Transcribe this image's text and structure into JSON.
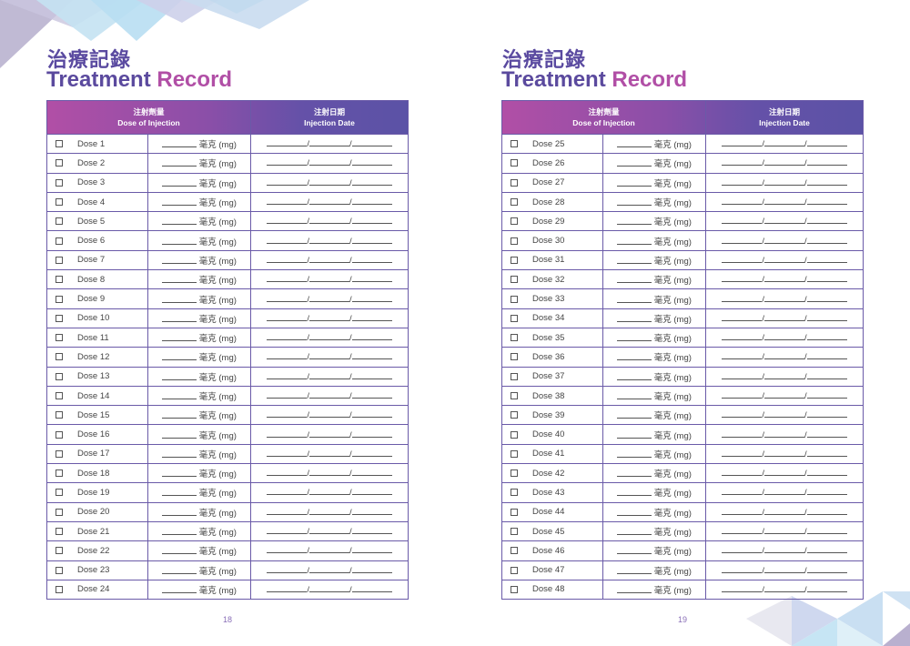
{
  "pages": [
    {
      "title_zh": "治療記錄",
      "title_en_part1": "Treatment ",
      "title_en_part2": "Record",
      "header": {
        "dose_zh": "注射劑量",
        "dose_en": "Dose of Injection",
        "date_zh": "注射日期",
        "date_en": "Injection Date"
      },
      "unit": "毫克 (mg)",
      "doses": [
        "Dose 1",
        "Dose 2",
        "Dose 3",
        "Dose 4",
        "Dose 5",
        "Dose 6",
        "Dose 7",
        "Dose 8",
        "Dose 9",
        "Dose 10",
        "Dose 11",
        "Dose 12",
        "Dose 13",
        "Dose 14",
        "Dose 15",
        "Dose 16",
        "Dose 17",
        "Dose 18",
        "Dose 19",
        "Dose 20",
        "Dose 21",
        "Dose 22",
        "Dose 23",
        "Dose 24"
      ],
      "page_number": "18"
    },
    {
      "title_zh": "治療記錄",
      "title_en_part1": "Treatment ",
      "title_en_part2": "Record",
      "header": {
        "dose_zh": "注射劑量",
        "dose_en": "Dose of Injection",
        "date_zh": "注射日期",
        "date_en": "Injection Date"
      },
      "unit": "毫克 (mg)",
      "doses": [
        "Dose 25",
        "Dose 26",
        "Dose 27",
        "Dose 28",
        "Dose 29",
        "Dose 30",
        "Dose 31",
        "Dose 32",
        "Dose 33",
        "Dose 34",
        "Dose 35",
        "Dose 36",
        "Dose 37",
        "Dose 38",
        "Dose 39",
        "Dose 40",
        "Dose 41",
        "Dose 42",
        "Dose 43",
        "Dose 44",
        "Dose 45",
        "Dose 46",
        "Dose 47",
        "Dose 48"
      ],
      "page_number": "19"
    }
  ],
  "colors": {
    "title_purple": "#5b4a9e",
    "title_magenta": "#b14fa6",
    "header_gradient_start": "#b14fa6",
    "header_gradient_end": "#5b52a6",
    "border": "#6a5aa8",
    "page_number": "#8a6fb8"
  }
}
